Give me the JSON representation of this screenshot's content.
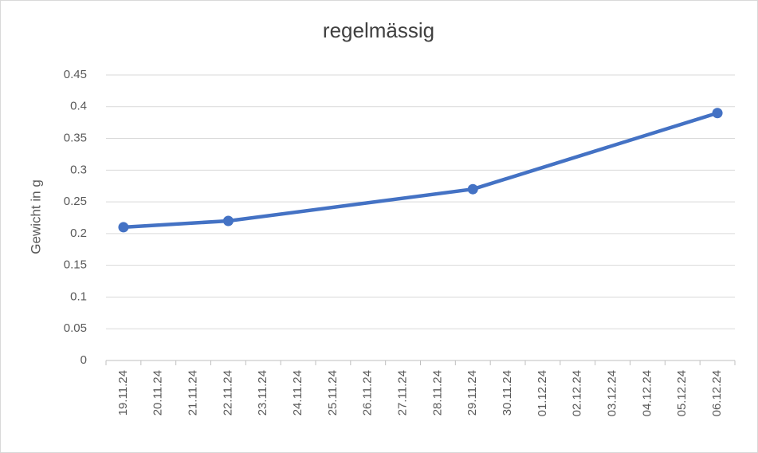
{
  "chart_data": {
    "type": "line",
    "title": "regelmässig",
    "y_label": "Gewicht in g",
    "xticks": [
      "19.11.24",
      "20.11.24",
      "21.11.24",
      "22.11.24",
      "23.11.24",
      "24.11.24",
      "25.11.24",
      "26.11.24",
      "27.11.24",
      "28.11.24",
      "29.11.24",
      "30.11.24",
      "01.12.24",
      "02.12.24",
      "03.12.24",
      "04.12.24",
      "05.12.24",
      "06.12.24"
    ],
    "x": [
      "19.11.24",
      "22.11.24",
      "29.11.24",
      "06.12.24"
    ],
    "values": [
      0.21,
      0.22,
      0.27,
      0.39
    ],
    "color": "#4472c4",
    "ylim": [
      0,
      0.45
    ],
    "yticks": [
      0,
      0.05,
      0.1,
      0.15,
      0.2,
      0.25,
      0.3,
      0.35,
      0.4,
      0.45
    ],
    "grid": true
  }
}
